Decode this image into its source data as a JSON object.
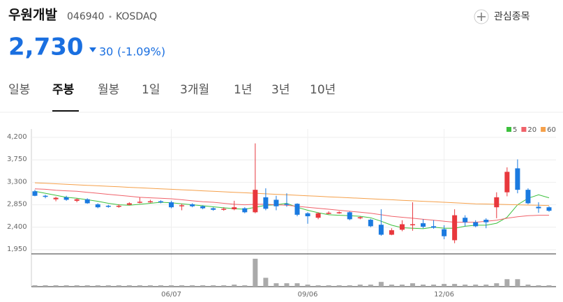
{
  "header": {
    "name": "우원개발",
    "code": "046940",
    "market": "KOSDAQ",
    "watch": "관심종목"
  },
  "price": {
    "current": "2,730",
    "change": "30",
    "percent": "(-1.09%)"
  },
  "tabs": [
    "일봉",
    "주봉",
    "월봉",
    "1일",
    "3개월",
    "1년",
    "3년",
    "10년"
  ],
  "active_tab": 1,
  "chart_data": {
    "type": "candlestick",
    "categories": [
      null,
      null,
      null,
      null,
      null,
      null,
      null,
      null,
      null,
      null,
      null,
      null,
      null,
      "06/07",
      null,
      null,
      null,
      null,
      null,
      null,
      null,
      null,
      null,
      null,
      null,
      null,
      "09/06",
      null,
      null,
      null,
      null,
      null,
      null,
      null,
      null,
      null,
      null,
      null,
      null,
      "12/06",
      null,
      null,
      null,
      null,
      null,
      null,
      null,
      null,
      null,
      null
    ],
    "open": [
      3120,
      3030,
      2960,
      3000,
      2930,
      2960,
      2860,
      2830,
      2810,
      2850,
      2890,
      2900,
      2920,
      2900,
      2820,
      2860,
      2820,
      2780,
      2750,
      2760,
      2780,
      2700,
      3000,
      2950,
      2870,
      2870,
      2680,
      2590,
      2670,
      2690,
      2700,
      2580,
      2550,
      2450,
      2250,
      2350,
      2440,
      2480,
      2420,
      2360,
      2140,
      2590,
      2500,
      2550,
      2800,
      3100,
      3580,
      3150,
      2810,
      2800
    ],
    "high": [
      3150,
      3050,
      3010,
      3030,
      2980,
      2980,
      2880,
      2850,
      2860,
      2900,
      3000,
      2950,
      2940,
      2930,
      2870,
      2880,
      2840,
      2800,
      2800,
      2930,
      2800,
      4080,
      3180,
      3030,
      3080,
      2880,
      2700,
      2700,
      2720,
      2720,
      2720,
      2620,
      2570,
      2760,
      2380,
      2540,
      2900,
      2560,
      2540,
      2440,
      2760,
      2640,
      2540,
      2580,
      3100,
      3600,
      3760,
      3180,
      2900,
      2820
    ],
    "low": [
      3020,
      2980,
      2920,
      2930,
      2900,
      2870,
      2780,
      2790,
      2790,
      2840,
      2880,
      2890,
      2880,
      2780,
      2740,
      2800,
      2760,
      2730,
      2730,
      2740,
      2680,
      2680,
      2740,
      2740,
      2810,
      2620,
      2470,
      2560,
      2660,
      2670,
      2540,
      2560,
      2400,
      2230,
      2240,
      2320,
      2330,
      2380,
      2370,
      2160,
      2080,
      2420,
      2400,
      2380,
      2580,
      3020,
      3080,
      2860,
      2690,
      2710
    ],
    "close": [
      3030,
      3010,
      2990,
      2950,
      2960,
      2880,
      2800,
      2810,
      2830,
      2880,
      2910,
      2920,
      2900,
      2800,
      2840,
      2820,
      2780,
      2750,
      2770,
      2800,
      2700,
      3150,
      2770,
      2820,
      2850,
      2650,
      2620,
      2680,
      2690,
      2700,
      2560,
      2600,
      2420,
      2250,
      2340,
      2460,
      2460,
      2410,
      2390,
      2220,
      2640,
      2500,
      2420,
      2500,
      3000,
      3510,
      3150,
      2880,
      2780,
      2730
    ],
    "up_color": "#e8383d",
    "down_color": "#1a7ae0",
    "series": [
      {
        "name": "5",
        "color": "#3cc03c",
        "values": [
          3120,
          3080,
          3040,
          3000,
          2980,
          2950,
          2920,
          2880,
          2850,
          2840,
          2860,
          2880,
          2900,
          2890,
          2870,
          2850,
          2830,
          2810,
          2790,
          2770,
          2760,
          2800,
          2840,
          2850,
          2880,
          2800,
          2740,
          2690,
          2650,
          2640,
          2630,
          2620,
          2590,
          2520,
          2440,
          2390,
          2380,
          2370,
          2400,
          2380,
          2380,
          2420,
          2440,
          2440,
          2480,
          2600,
          2850,
          2980,
          3050,
          2990
        ]
      },
      {
        "name": "20",
        "color": "#f0626a",
        "values": [
          3170,
          3160,
          3140,
          3130,
          3120,
          3100,
          3080,
          3060,
          3040,
          3020,
          3000,
          2990,
          2980,
          2970,
          2950,
          2930,
          2910,
          2900,
          2880,
          2860,
          2850,
          2860,
          2860,
          2850,
          2840,
          2820,
          2800,
          2780,
          2760,
          2740,
          2720,
          2700,
          2680,
          2650,
          2620,
          2600,
          2580,
          2560,
          2540,
          2520,
          2500,
          2500,
          2500,
          2520,
          2540,
          2580,
          2610,
          2630,
          2640,
          2640
        ]
      },
      {
        "name": "60",
        "color": "#f5a04a",
        "values": [
          3290,
          3280,
          3270,
          3260,
          3250,
          3240,
          3230,
          3220,
          3210,
          3200,
          3190,
          3180,
          3170,
          3160,
          3150,
          3140,
          3130,
          3120,
          3110,
          3100,
          3090,
          3080,
          3070,
          3060,
          3050,
          3040,
          3030,
          3020,
          3010,
          3000,
          2990,
          2980,
          2970,
          2960,
          2950,
          2940,
          2930,
          2920,
          2910,
          2900,
          2890,
          2880,
          2870,
          2865,
          2860,
          2855,
          2850,
          2845,
          2840,
          2835
        ]
      }
    ],
    "volume": [
      200,
      200,
      200,
      200,
      200,
      200,
      200,
      200,
      200,
      200,
      200,
      200,
      200,
      200,
      200,
      200,
      200,
      200,
      200,
      300,
      200,
      4100,
      1300,
      500,
      500,
      500,
      300,
      200,
      200,
      200,
      200,
      300,
      300,
      700,
      300,
      300,
      500,
      300,
      300,
      400,
      400,
      300,
      300,
      300,
      500,
      1100,
      1100,
      300,
      200,
      200
    ],
    "volume_color": "#aaaaaa",
    "volume_ylim": [
      0,
      4200
    ],
    "ylim": [
      1950,
      4200
    ],
    "yticks": [
      {
        "value": 4200,
        "label": "4,200"
      },
      {
        "value": 3750,
        "label": "3,750"
      },
      {
        "value": 3300,
        "label": "3,300"
      },
      {
        "value": 2850,
        "label": "2,850"
      },
      {
        "value": 2400,
        "label": "2,400"
      },
      {
        "value": 1950,
        "label": "1,950"
      }
    ],
    "grid": true
  }
}
